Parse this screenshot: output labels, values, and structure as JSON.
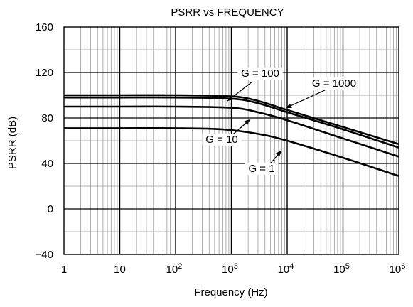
{
  "chart_data": {
    "type": "line",
    "title": "PSRR vs FREQUENCY",
    "xlabel": "Frequency (Hz)",
    "ylabel": "PSRR (dB)",
    "x_scale": "log",
    "xlim": [
      1,
      1000000
    ],
    "ylim": [
      -40,
      160
    ],
    "x_ticks": [
      {
        "base": "1",
        "exp": ""
      },
      {
        "base": "10",
        "exp": ""
      },
      {
        "base": "10",
        "exp": "2"
      },
      {
        "base": "10",
        "exp": "3"
      },
      {
        "base": "10",
        "exp": "4"
      },
      {
        "base": "10",
        "exp": "5"
      },
      {
        "base": "10",
        "exp": "6"
      }
    ],
    "y_ticks": [
      "160",
      "120",
      "80",
      "40",
      "0",
      "−40"
    ],
    "y_tick_values": [
      160,
      120,
      80,
      40,
      0,
      -40
    ],
    "grid": true,
    "series": [
      {
        "name": "G = 1000",
        "x": [
          1,
          10,
          100,
          1000,
          3000,
          10000,
          100000,
          1000000
        ],
        "y": [
          100,
          100,
          100,
          99,
          95,
          87,
          72,
          57
        ]
      },
      {
        "name": "G = 100",
        "x": [
          1,
          10,
          100,
          1000,
          3000,
          10000,
          100000,
          1000000
        ],
        "y": [
          98,
          98,
          98,
          97,
          93,
          85,
          70,
          54
        ]
      },
      {
        "name": "G = 10",
        "x": [
          1,
          10,
          100,
          1000,
          3000,
          10000,
          100000,
          1000000
        ],
        "y": [
          90,
          90,
          90,
          89,
          85,
          78,
          62,
          46
        ]
      },
      {
        "name": "G = 1",
        "x": [
          1,
          10,
          100,
          700,
          3000,
          10000,
          100000,
          1000000
        ],
        "y": [
          71,
          71,
          71,
          70,
          66,
          60,
          45,
          29
        ]
      }
    ],
    "annotations": [
      {
        "text": "G = 100",
        "series": "G = 100"
      },
      {
        "text": "G = 1000",
        "series": "G = 1000"
      },
      {
        "text": "G = 10",
        "series": "G = 10"
      },
      {
        "text": "G = 1",
        "series": "G = 1"
      }
    ]
  }
}
